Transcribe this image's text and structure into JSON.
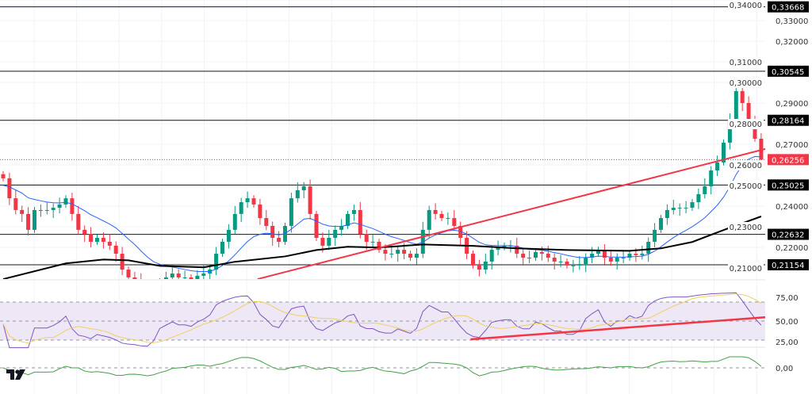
{
  "chart_data": {
    "type": "candlestick",
    "title": "",
    "ylim": [
      0.2,
      0.34
    ],
    "price_ticks": [
      "0,34000",
      "0,33000",
      "0,32000",
      "0,31000",
      "0,30000",
      "0,29000",
      "0,28000",
      "0,27000",
      "0,26000",
      "0,25000",
      "0,24000",
      "0,23000",
      "0,22000",
      "0,21000"
    ],
    "price_tick_values": [
      0.34,
      0.33,
      0.32,
      0.31,
      0.3,
      0.29,
      0.28,
      0.27,
      0.26,
      0.25,
      0.24,
      0.23,
      0.22,
      0.21
    ],
    "closes": [
      0.2535,
      0.2438,
      0.2381,
      0.2362,
      0.2285,
      0.2381,
      0.2381,
      0.2381,
      0.2392,
      0.2408,
      0.2438,
      0.2362,
      0.2285,
      0.2265,
      0.2227,
      0.2246,
      0.2227,
      0.2208,
      0.2169,
      0.2092,
      0.2054,
      0.2035,
      0.1977,
      0.1958,
      0.1977,
      0.2035,
      0.2054,
      0.2073,
      0.2054,
      0.2054,
      0.2046,
      0.2062,
      0.2073,
      0.2092,
      0.2169,
      0.2227,
      0.2285,
      0.2362,
      0.2419,
      0.2438,
      0.2408,
      0.2342,
      0.2304,
      0.2246,
      0.2227,
      0.2304,
      0.2438,
      0.2477,
      0.2496,
      0.2362,
      0.2246,
      0.2208,
      0.2246,
      0.2285,
      0.2304,
      0.2362,
      0.2381,
      0.2265,
      0.2227,
      0.2227,
      0.2188,
      0.2169,
      0.2169,
      0.2188,
      0.2169,
      0.215,
      0.2169,
      0.2285,
      0.2381,
      0.2362,
      0.2342,
      0.2342,
      0.2304,
      0.2246,
      0.2169,
      0.2112,
      0.2092,
      0.2131,
      0.2188,
      0.22,
      0.2208,
      0.2208,
      0.2169,
      0.215,
      0.215,
      0.2177,
      0.2169,
      0.215,
      0.2131,
      0.2131,
      0.2112,
      0.2112,
      0.2119,
      0.215,
      0.2169,
      0.2188,
      0.215,
      0.2131,
      0.215,
      0.215,
      0.2169,
      0.2162,
      0.2169,
      0.2227,
      0.2285,
      0.2342,
      0.2381,
      0.2392,
      0.2392,
      0.2392,
      0.2419,
      0.2458,
      0.2496,
      0.2573,
      0.2612,
      0.2708,
      0.2823,
      0.2958,
      0.29,
      0.2823,
      0.2727,
      0.26256
    ],
    "ma200_points": [
      [
        0,
        0.2046
      ],
      [
        10,
        0.2122
      ],
      [
        16,
        0.2141
      ],
      [
        20,
        0.2137
      ],
      [
        25,
        0.211
      ],
      [
        32,
        0.2103
      ],
      [
        37,
        0.213
      ],
      [
        45,
        0.2156
      ],
      [
        50,
        0.2187
      ],
      [
        55,
        0.2203
      ],
      [
        60,
        0.2199
      ],
      [
        67,
        0.2214
      ],
      [
        75,
        0.2207
      ],
      [
        82,
        0.2195
      ],
      [
        90,
        0.2187
      ],
      [
        100,
        0.2183
      ],
      [
        105,
        0.2195
      ],
      [
        110,
        0.2226
      ],
      [
        115,
        0.2284
      ],
      [
        121,
        0.235
      ]
    ],
    "ma50_seed": 0.2496,
    "levels": [
      {
        "value": 0.33668,
        "label": "0,33668"
      },
      {
        "value": 0.30545,
        "label": "0,30545"
      },
      {
        "value": 0.28164,
        "label": "0,28164"
      },
      {
        "value": 0.25025,
        "label": "0,25025"
      },
      {
        "value": 0.22632,
        "label": "0,22632"
      },
      {
        "value": 0.21154,
        "label": "0,21154"
      }
    ],
    "current_price": {
      "value": 0.26256,
      "label": "0,26256"
    },
    "trendline": {
      "from": [
        40.6,
        0.2046
      ],
      "to": [
        122,
        0.268
      ]
    },
    "rsi": {
      "ticks": [
        {
          "value": 75,
          "label": "75,00"
        },
        {
          "value": 50,
          "label": "50,00"
        },
        {
          "value": 25,
          "label": "25,00"
        }
      ],
      "band": [
        30,
        70
      ],
      "trendline": {
        "from": [
          74.6,
          30.8
        ],
        "to": [
          122,
          54.2
        ]
      }
    },
    "momentum": {
      "ticks": [
        {
          "value": 0,
          "label": "0,00"
        }
      ]
    }
  },
  "colors": {
    "up": "#089981",
    "down": "#f23645",
    "ma50": "#2962ff",
    "ma200": "#000000",
    "trend": "#f23645",
    "rsi": "#7e57c2",
    "rsi_ma": "#f0d060",
    "momentum": "#43a047",
    "band": "#ede7f6"
  },
  "logo": {
    "text": "TV"
  }
}
